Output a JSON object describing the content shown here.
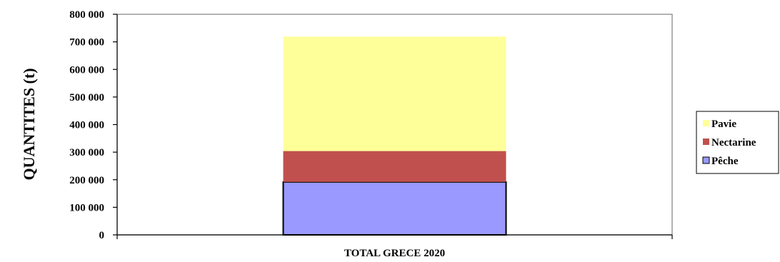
{
  "chart_data": {
    "type": "bar",
    "stacked": true,
    "categories": [
      "TOTAL GRECE 2020"
    ],
    "series": [
      {
        "name": "Pêche",
        "values": [
          192000
        ],
        "color": "#9999ff"
      },
      {
        "name": "Nectarine",
        "values": [
          112000
        ],
        "color": "#c0504d"
      },
      {
        "name": "Pavie",
        "values": [
          415000
        ],
        "color": "#ffff99"
      }
    ],
    "ylabel": "QUANTITES (t)",
    "ylim": [
      0,
      800000
    ],
    "yticks": [
      0,
      100000,
      200000,
      300000,
      400000,
      500000,
      600000,
      700000,
      800000
    ],
    "ytick_labels": [
      "0",
      "100 000",
      "200 000",
      "300 000",
      "400 000",
      "500 000",
      "600 000",
      "700 000",
      "800 000"
    ],
    "grid": false,
    "legend_position": "right",
    "legend_order": [
      "Pavie",
      "Nectarine",
      "Pêche"
    ]
  }
}
